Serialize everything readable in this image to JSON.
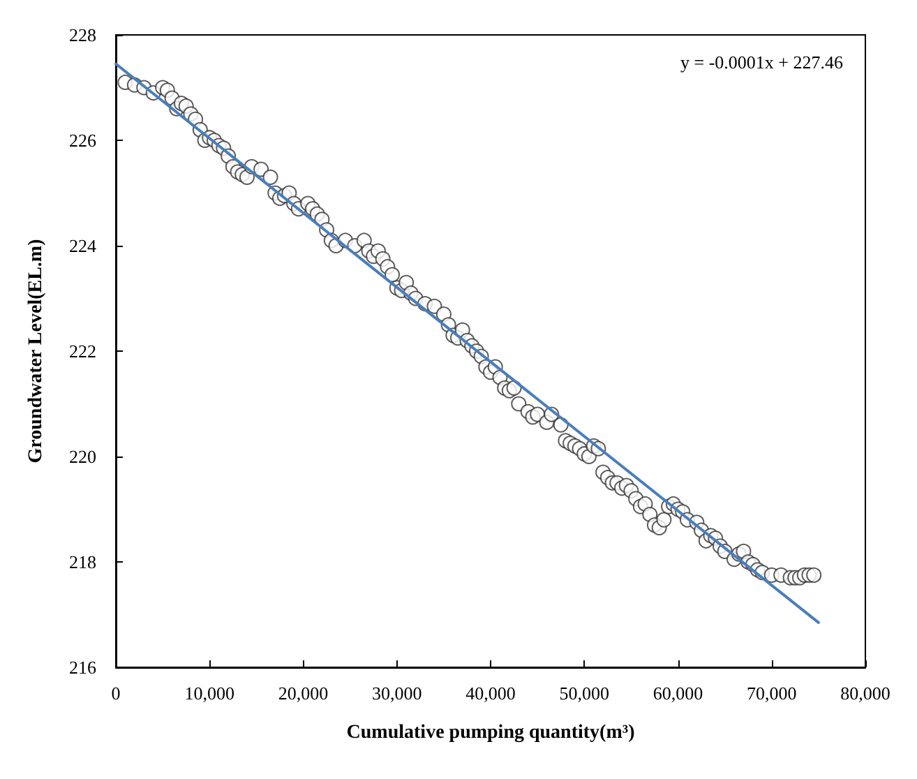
{
  "chart_data": {
    "type": "scatter",
    "xlabel": "Cumulative pumping quantity(m³)",
    "ylabel": "Groundwater Level(EL.m)",
    "annotations": [
      "y = -0.0001x + 227.46"
    ],
    "xlim": [
      0,
      80000
    ],
    "ylim": [
      216,
      228
    ],
    "xticks": [
      0,
      {
        "value": 10000,
        "label": "10,000"
      },
      {
        "value": 20000,
        "label": "20,000"
      },
      {
        "value": 30000,
        "label": "30,000"
      },
      {
        "value": 40000,
        "label": "40,000"
      },
      {
        "value": 50000,
        "label": "50,000"
      },
      {
        "value": 60000,
        "label": "60,000"
      },
      {
        "value": 70000,
        "label": "70,000"
      },
      {
        "value": 80000,
        "label": "80,000"
      }
    ],
    "yticks": [
      216,
      218,
      220,
      222,
      224,
      226,
      228
    ],
    "grid": false,
    "marker": "circle",
    "series": [
      {
        "color": "#333333",
        "x": [
          1000,
          2000,
          3000,
          4000,
          5000,
          5500,
          6000,
          6500,
          7000,
          7500,
          8000,
          8500,
          9000,
          9500,
          10000,
          10500,
          11000,
          11500,
          12000,
          12500,
          13000,
          13500,
          14000,
          14500,
          15500,
          16500,
          17000,
          17500,
          18000,
          18500,
          19000,
          19500,
          20500,
          21000,
          21500,
          22000,
          22500,
          23000,
          23500,
          24500,
          25500,
          26500,
          27000,
          27500,
          28000,
          28500,
          29000,
          29500,
          30000,
          30500,
          31000,
          31500,
          32000,
          33000,
          34000,
          35000,
          35500,
          36000,
          36500,
          37000,
          37500,
          38000,
          38500,
          39000,
          39500,
          40000,
          40500,
          41000,
          41500,
          42000,
          42500,
          43000,
          44000,
          44500,
          45000,
          46000,
          46500,
          47500,
          48000,
          48500,
          49000,
          49500,
          50000,
          50500,
          51000,
          51500,
          52000,
          52500,
          53000,
          53500,
          54000,
          54500,
          55000,
          55500,
          56000,
          56500,
          57000,
          57500,
          58000,
          58500,
          59000,
          59500,
          60000,
          60500,
          61000,
          62000,
          62500,
          63000,
          63500,
          64000,
          64500,
          65000,
          66000,
          66500,
          67000,
          67500,
          68000,
          68500,
          69000,
          70000,
          71000,
          72000,
          72500,
          73000,
          73500,
          74000,
          74500
        ],
        "values": [
          227.1,
          227.05,
          227.0,
          226.9,
          227.0,
          226.95,
          226.8,
          226.6,
          226.7,
          226.65,
          226.5,
          226.4,
          226.2,
          226.0,
          226.05,
          226.0,
          225.9,
          225.85,
          225.7,
          225.5,
          225.4,
          225.35,
          225.3,
          225.5,
          225.45,
          225.3,
          225.0,
          224.9,
          224.95,
          225.0,
          224.8,
          224.7,
          224.8,
          224.7,
          224.6,
          224.5,
          224.3,
          224.1,
          224.0,
          224.1,
          224.0,
          224.1,
          223.9,
          223.8,
          223.9,
          223.75,
          223.6,
          223.45,
          223.2,
          223.15,
          223.3,
          223.1,
          223.0,
          222.9,
          222.85,
          222.7,
          222.5,
          222.3,
          222.25,
          222.4,
          222.2,
          222.1,
          222.0,
          221.9,
          221.7,
          221.6,
          221.7,
          221.5,
          221.3,
          221.25,
          221.3,
          221.0,
          220.85,
          220.75,
          220.8,
          220.65,
          220.8,
          220.6,
          220.3,
          220.25,
          220.2,
          220.15,
          220.05,
          220.0,
          220.2,
          220.15,
          219.7,
          219.6,
          219.5,
          219.5,
          219.4,
          219.45,
          219.35,
          219.2,
          219.05,
          219.1,
          218.9,
          218.7,
          218.65,
          218.8,
          219.05,
          219.1,
          219.0,
          218.95,
          218.8,
          218.75,
          218.6,
          218.4,
          218.5,
          218.45,
          218.3,
          218.2,
          218.05,
          218.15,
          218.2,
          218.0,
          217.95,
          217.85,
          217.8,
          217.75,
          217.75,
          217.7,
          217.7,
          217.7,
          217.75,
          217.75,
          217.75
        ]
      },
      {
        "type": "line",
        "color": "#4a7ebb",
        "marker": "none",
        "x": [
          0,
          75000
        ],
        "values": [
          227.45,
          216.85
        ]
      }
    ]
  }
}
